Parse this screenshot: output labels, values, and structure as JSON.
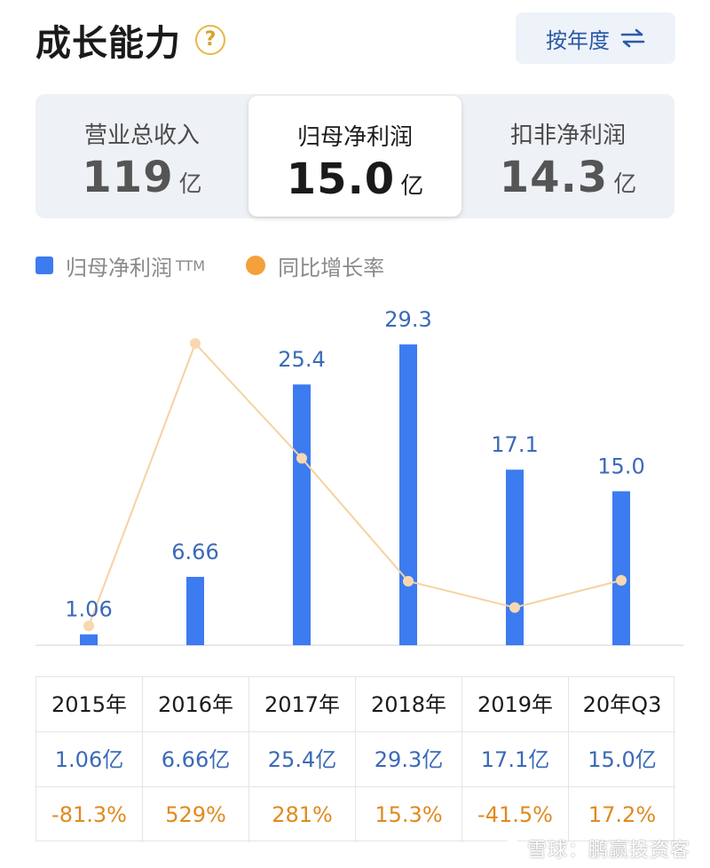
{
  "header": {
    "title": "成长能力",
    "help_symbol": "?",
    "period_label": "按年度"
  },
  "tabs": [
    {
      "label": "营业总收入",
      "value": "119",
      "unit": "亿",
      "active": false
    },
    {
      "label": "归母净利润",
      "value": "15.0",
      "unit": "亿",
      "active": true
    },
    {
      "label": "扣非净利润",
      "value": "14.3",
      "unit": "亿",
      "active": false
    }
  ],
  "legend": {
    "bar_label": "归母净利润",
    "bar_suffix": "TTM",
    "line_label": "同比增长率"
  },
  "colors": {
    "bar": "#3d7bf0",
    "line": "#f6d2a2",
    "dot": "#f7d8b0",
    "value_label": "#3a6ab8"
  },
  "chart_data": {
    "type": "bar",
    "categories": [
      "2015年",
      "2016年",
      "2017年",
      "2018年",
      "2019年",
      "20年Q3"
    ],
    "series": [
      {
        "name": "归母净利润",
        "unit": "亿",
        "values": [
          1.06,
          6.66,
          25.4,
          29.3,
          17.1,
          15.0
        ],
        "labels": [
          "1.06",
          "6.66",
          "25.4",
          "29.3",
          "17.1",
          "15.0"
        ]
      },
      {
        "name": "同比增长率",
        "type": "line",
        "unit": "%",
        "values": [
          -81.3,
          529,
          281,
          15.3,
          -41.5,
          17.2
        ]
      }
    ],
    "ylim_bar": [
      0,
      30
    ],
    "ylim_line": [
      -100,
      600
    ],
    "legend_position": "top-left",
    "grid": false
  },
  "table": {
    "rows": [
      [
        "2015年",
        "2016年",
        "2017年",
        "2018年",
        "2019年",
        "20年Q3"
      ],
      [
        "1.06亿",
        "6.66亿",
        "25.4亿",
        "29.3亿",
        "17.1亿",
        "15.0亿"
      ],
      [
        "-81.3%",
        "529%",
        "281%",
        "15.3%",
        "-41.5%",
        "17.2%"
      ]
    ]
  },
  "watermark": "雪球：鹏赢投资客"
}
